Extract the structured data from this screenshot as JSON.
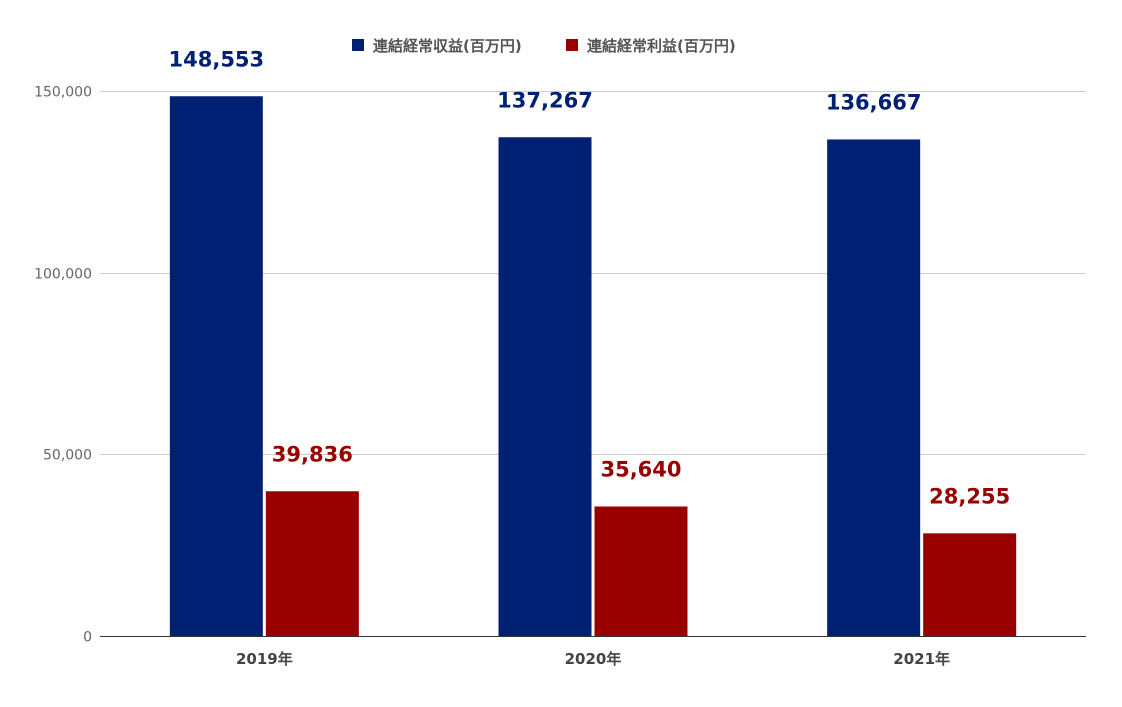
{
  "chart_data": {
    "type": "bar",
    "categories": [
      "2019年",
      "2020年",
      "2021年"
    ],
    "series": [
      {
        "name": "連結経常収益(百万円)",
        "color": "#002074",
        "values": [
          148553,
          137267,
          136667
        ],
        "labels": [
          "148,553",
          "137,267",
          "136,667"
        ]
      },
      {
        "name": "連結経常利益(百万円)",
        "color": "#990000",
        "values": [
          39836,
          35640,
          28255
        ],
        "labels": [
          "39,836",
          "35,640",
          "28,255"
        ]
      }
    ],
    "ylim": [
      0,
      150000
    ],
    "yticks": [
      0,
      50000,
      100000,
      150000
    ],
    "ytick_labels": [
      "0",
      "50,000",
      "100,000",
      "150,000"
    ],
    "grid": true,
    "legend": "top-center",
    "title": "",
    "xlabel": "",
    "ylabel": ""
  }
}
